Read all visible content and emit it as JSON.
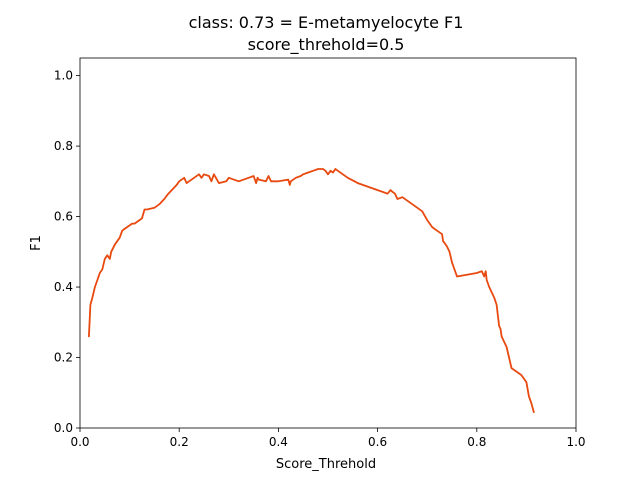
{
  "chart_data": {
    "type": "line",
    "title": "class: 0.73 = E-metamyelocyte F1",
    "subtitle": "score_threhold=0.5",
    "xlabel": "Score_Threhold",
    "ylabel": "F1",
    "xlim": [
      0.0,
      1.0
    ],
    "ylim": [
      0.0,
      1.05
    ],
    "xticks": [
      "0.0",
      "0.2",
      "0.4",
      "0.6",
      "0.8",
      "1.0"
    ],
    "yticks": [
      "0.0",
      "0.2",
      "0.4",
      "0.6",
      "0.8",
      "1.0"
    ],
    "grid": false,
    "series": [
      {
        "color": "#e8490f",
        "x": [
          0.018,
          0.021,
          0.025,
          0.03,
          0.035,
          0.04,
          0.045,
          0.05,
          0.055,
          0.06,
          0.063,
          0.07,
          0.075,
          0.08,
          0.085,
          0.09,
          0.095,
          0.1,
          0.105,
          0.11,
          0.115,
          0.12,
          0.125,
          0.13,
          0.135,
          0.15,
          0.16,
          0.17,
          0.178,
          0.185,
          0.195,
          0.2,
          0.21,
          0.215,
          0.22,
          0.23,
          0.24,
          0.245,
          0.25,
          0.26,
          0.265,
          0.27,
          0.28,
          0.295,
          0.3,
          0.32,
          0.34,
          0.35,
          0.355,
          0.358,
          0.36,
          0.375,
          0.38,
          0.385,
          0.4,
          0.42,
          0.423,
          0.425,
          0.435,
          0.445,
          0.45,
          0.46,
          0.47,
          0.48,
          0.49,
          0.495,
          0.5,
          0.505,
          0.51,
          0.515,
          0.52,
          0.54,
          0.56,
          0.58,
          0.6,
          0.61,
          0.62,
          0.623,
          0.626,
          0.63,
          0.635,
          0.64,
          0.65,
          0.67,
          0.69,
          0.7,
          0.71,
          0.72,
          0.73,
          0.732,
          0.735,
          0.74,
          0.745,
          0.75,
          0.76,
          0.8,
          0.81,
          0.815,
          0.818,
          0.82,
          0.825,
          0.835,
          0.84,
          0.845,
          0.848,
          0.85,
          0.855,
          0.86,
          0.87,
          0.875,
          0.88,
          0.89,
          0.9,
          0.905,
          0.91,
          0.915
        ],
        "y": [
          0.26,
          0.35,
          0.37,
          0.4,
          0.42,
          0.44,
          0.45,
          0.48,
          0.49,
          0.48,
          0.5,
          0.52,
          0.53,
          0.54,
          0.56,
          0.565,
          0.57,
          0.575,
          0.58,
          0.58,
          0.585,
          0.59,
          0.595,
          0.62,
          0.62,
          0.625,
          0.635,
          0.65,
          0.665,
          0.675,
          0.69,
          0.7,
          0.71,
          0.695,
          0.7,
          0.71,
          0.72,
          0.71,
          0.72,
          0.715,
          0.7,
          0.72,
          0.695,
          0.7,
          0.71,
          0.7,
          0.71,
          0.715,
          0.695,
          0.71,
          0.705,
          0.7,
          0.715,
          0.7,
          0.7,
          0.705,
          0.69,
          0.7,
          0.71,
          0.715,
          0.72,
          0.725,
          0.73,
          0.735,
          0.735,
          0.73,
          0.72,
          0.73,
          0.725,
          0.735,
          0.73,
          0.71,
          0.695,
          0.685,
          0.675,
          0.67,
          0.665,
          0.67,
          0.675,
          0.67,
          0.665,
          0.65,
          0.655,
          0.635,
          0.615,
          0.59,
          0.57,
          0.56,
          0.55,
          0.53,
          0.525,
          0.515,
          0.5,
          0.47,
          0.43,
          0.44,
          0.445,
          0.43,
          0.445,
          0.42,
          0.4,
          0.37,
          0.35,
          0.29,
          0.28,
          0.26,
          0.245,
          0.23,
          0.17,
          0.165,
          0.16,
          0.15,
          0.13,
          0.09,
          0.07,
          0.045
        ]
      }
    ]
  }
}
